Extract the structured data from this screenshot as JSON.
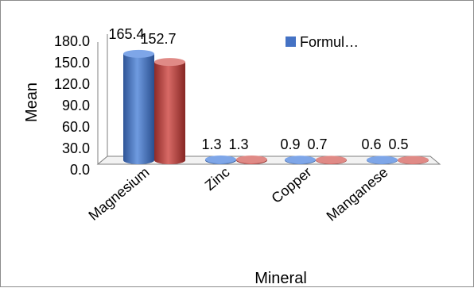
{
  "chart_data": {
    "type": "bar",
    "subtype": "3d-cylinder-clustered",
    "categories": [
      "Magnesium",
      "Zinc",
      "Copper",
      "Manganese"
    ],
    "series": [
      {
        "name": "Formul…",
        "color": "#4472c4",
        "values": [
          165.4,
          1.3,
          0.9,
          0.6
        ]
      },
      {
        "name": "",
        "color": "#c0504d",
        "values": [
          152.7,
          1.3,
          0.7,
          0.5
        ]
      }
    ],
    "data_labels": [
      [
        "165.4",
        "1.3",
        "0.9",
        "0.6"
      ],
      [
        "152.7",
        "1.3",
        "0.7",
        "0.5"
      ]
    ],
    "yticks": [
      "180.0",
      "150.0",
      "120.0",
      "90.0",
      "60.0",
      "30.0",
      "0.0"
    ],
    "ylim": [
      0,
      180
    ],
    "xlabel": "Mineral",
    "ylabel": "Mean",
    "legend": {
      "position": "top-right",
      "entry": "Formul…"
    },
    "grid": false
  }
}
